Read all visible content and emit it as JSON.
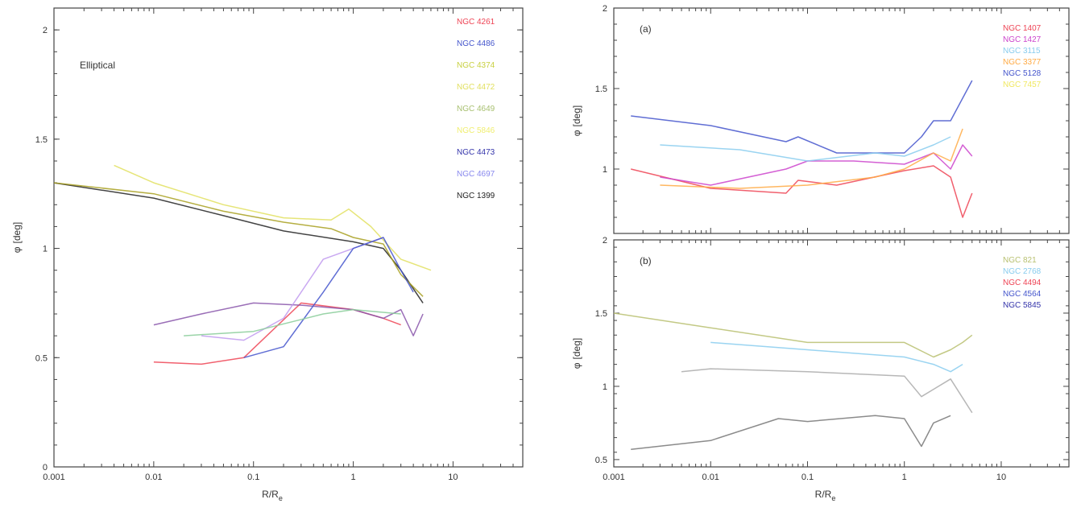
{
  "chart_data": [
    {
      "id": "left",
      "type": "line",
      "panel_label": "Elliptical",
      "xlabel": "R/R",
      "xlabel_sub": "e",
      "ylabel": "φ",
      "ylabel_unit": "[deg]",
      "xscale": "log",
      "xlim": [
        0.001,
        50
      ],
      "ylim": [
        0,
        2.1
      ],
      "xticks": [
        0.001,
        0.01,
        0.1,
        1,
        10
      ],
      "xtick_labels": [
        "0.001",
        "0.01",
        "0.1",
        "1",
        "10"
      ],
      "yticks": [
        0,
        0.5,
        1,
        1.5,
        2
      ],
      "ytick_labels": [
        "0",
        "0.5",
        "1",
        "1.5",
        "2"
      ],
      "grid": false,
      "legend_position": "top-right",
      "legend": [
        {
          "label": "NGC 4261",
          "color": "#ee4455"
        },
        {
          "label": "NGC 4486",
          "color": "#4455cc"
        },
        {
          "label": "NGC 4374",
          "color": "#c8d040"
        },
        {
          "label": "NGC 4472",
          "color": "#e2e060"
        },
        {
          "label": "NGC 4649",
          "color": "#a8c070"
        },
        {
          "label": "NGC 5846",
          "color": "#f0ee70"
        },
        {
          "label": "NGC 4473",
          "color": "#3333aa"
        },
        {
          "label": "NGC 4697",
          "color": "#8888ee"
        },
        {
          "label": "NGC 1399",
          "color": "#222222"
        }
      ],
      "series": [
        {
          "color": "#222222",
          "x": [
            0.001,
            0.01,
            0.05,
            0.2,
            1,
            2,
            3,
            5
          ],
          "y": [
            1.3,
            1.23,
            1.15,
            1.08,
            1.03,
            1.0,
            0.9,
            0.75
          ]
        },
        {
          "color": "#a8a020",
          "x": [
            0.001,
            0.01,
            0.05,
            0.2,
            0.6,
            1,
            2,
            3,
            5
          ],
          "y": [
            1.3,
            1.25,
            1.17,
            1.12,
            1.09,
            1.05,
            1.02,
            0.88,
            0.78
          ]
        },
        {
          "color": "#e2e060",
          "x": [
            0.004,
            0.01,
            0.05,
            0.2,
            0.6,
            0.9,
            1.5,
            3,
            6
          ],
          "y": [
            1.38,
            1.3,
            1.2,
            1.14,
            1.13,
            1.18,
            1.1,
            0.95,
            0.9
          ]
        },
        {
          "color": "#ee4455",
          "x": [
            0.01,
            0.03,
            0.08,
            0.3,
            1,
            2,
            3
          ],
          "y": [
            0.48,
            0.47,
            0.5,
            0.75,
            0.72,
            0.68,
            0.65
          ]
        },
        {
          "color": "#8855aa",
          "x": [
            0.01,
            0.03,
            0.1,
            0.3,
            1,
            2,
            3,
            4,
            5
          ],
          "y": [
            0.65,
            0.7,
            0.75,
            0.74,
            0.72,
            0.68,
            0.72,
            0.6,
            0.7
          ]
        },
        {
          "color": "#c099ee",
          "x": [
            0.03,
            0.08,
            0.2,
            0.5,
            1,
            2
          ],
          "y": [
            0.6,
            0.58,
            0.68,
            0.95,
            1.0,
            1.05
          ]
        },
        {
          "color": "#4455cc",
          "x": [
            0.08,
            0.2,
            0.5,
            1,
            2,
            3,
            4
          ],
          "y": [
            0.5,
            0.55,
            0.8,
            1.0,
            1.05,
            0.9,
            0.8
          ]
        },
        {
          "color": "#88cc99",
          "x": [
            0.02,
            0.1,
            0.5,
            1,
            3
          ],
          "y": [
            0.6,
            0.62,
            0.7,
            0.72,
            0.7
          ]
        }
      ]
    },
    {
      "id": "top-right",
      "type": "line",
      "panel_label": "(a)",
      "xlabel": "",
      "ylabel": "φ",
      "ylabel_unit": "[deg]",
      "xscale": "log",
      "xlim": [
        0.001,
        50
      ],
      "ylim": [
        0.6,
        2
      ],
      "xticks": [
        0.001,
        0.01,
        0.1,
        1,
        10
      ],
      "yticks": [
        1,
        1.5,
        2
      ],
      "ytick_labels": [
        "1",
        "1.5",
        "2"
      ],
      "grid": false,
      "legend_position": "top-right",
      "legend": [
        {
          "label": "NGC 1407",
          "color": "#ee4455"
        },
        {
          "label": "NGC 1427",
          "color": "#cc44cc"
        },
        {
          "label": "NGC 3115",
          "color": "#88ccee"
        },
        {
          "label": "NGC 3377",
          "color": "#ffaa44"
        },
        {
          "label": "NGC 5128",
          "color": "#4455cc"
        },
        {
          "label": "NGC 7457",
          "color": "#f0e860"
        }
      ],
      "series": [
        {
          "color": "#4455cc",
          "x": [
            0.0015,
            0.01,
            0.06,
            0.08,
            0.2,
            1,
            1.5,
            2,
            3,
            5
          ],
          "y": [
            1.33,
            1.27,
            1.17,
            1.2,
            1.1,
            1.1,
            1.2,
            1.3,
            1.3,
            1.55
          ]
        },
        {
          "color": "#ee4455",
          "x": [
            0.0015,
            0.01,
            0.06,
            0.08,
            0.2,
            1,
            2,
            3,
            4,
            5
          ],
          "y": [
            1.0,
            0.88,
            0.85,
            0.93,
            0.9,
            0.99,
            1.02,
            0.95,
            0.7,
            0.85
          ]
        },
        {
          "color": "#cc44cc",
          "x": [
            0.003,
            0.01,
            0.06,
            0.1,
            0.3,
            1,
            2,
            3,
            4,
            5
          ],
          "y": [
            0.95,
            0.9,
            1.0,
            1.05,
            1.05,
            1.03,
            1.1,
            1.0,
            1.15,
            1.08
          ]
        },
        {
          "color": "#88ccee",
          "x": [
            0.003,
            0.02,
            0.1,
            0.5,
            1,
            2,
            3
          ],
          "y": [
            1.15,
            1.12,
            1.05,
            1.1,
            1.08,
            1.15,
            1.2
          ]
        },
        {
          "color": "#ffaa44",
          "x": [
            0.003,
            0.02,
            0.1,
            0.5,
            1,
            2,
            3,
            4
          ],
          "y": [
            0.9,
            0.88,
            0.9,
            0.95,
            1.0,
            1.1,
            1.05,
            1.25
          ]
        }
      ]
    },
    {
      "id": "bottom-right",
      "type": "line",
      "panel_label": "(b)",
      "xlabel": "R/R",
      "xlabel_sub": "e",
      "ylabel": "φ",
      "ylabel_unit": "[deg]",
      "xscale": "log",
      "xlim": [
        0.001,
        50
      ],
      "ylim": [
        0.45,
        2
      ],
      "xticks": [
        0.001,
        0.01,
        0.1,
        1,
        10
      ],
      "xtick_labels": [
        "0.001",
        "0.01",
        "0.1",
        "1",
        "10"
      ],
      "yticks": [
        0.5,
        1,
        1.5,
        2
      ],
      "ytick_labels": [
        "0.5",
        "1",
        "1.5",
        "2"
      ],
      "grid": false,
      "legend_position": "top-right",
      "legend": [
        {
          "label": "NGC 821",
          "color": "#b8c070"
        },
        {
          "label": "NGC 2768",
          "color": "#88ccee"
        },
        {
          "label": "NGC 4494",
          "color": "#ee4455"
        },
        {
          "label": "NGC 4564",
          "color": "#4455cc"
        },
        {
          "label": "NGC 5845",
          "color": "#3333aa"
        }
      ],
      "series": [
        {
          "color": "#b8c070",
          "x": [
            0.001,
            0.01,
            0.1,
            1,
            2,
            3,
            4,
            5
          ],
          "y": [
            1.5,
            1.4,
            1.3,
            1.3,
            1.2,
            1.25,
            1.3,
            1.35
          ]
        },
        {
          "color": "#88ccee",
          "x": [
            0.01,
            0.1,
            1,
            2,
            3,
            4
          ],
          "y": [
            1.3,
            1.25,
            1.2,
            1.15,
            1.1,
            1.15
          ]
        },
        {
          "color": "#aaaaaa",
          "x": [
            0.005,
            0.01,
            0.1,
            1,
            1.5,
            2,
            3,
            5
          ],
          "y": [
            1.1,
            1.12,
            1.1,
            1.07,
            0.93,
            0.98,
            1.05,
            0.82
          ]
        },
        {
          "color": "#777777",
          "x": [
            0.0015,
            0.01,
            0.05,
            0.1,
            0.5,
            1,
            1.5,
            2,
            3
          ],
          "y": [
            0.57,
            0.63,
            0.78,
            0.76,
            0.8,
            0.78,
            0.59,
            0.75,
            0.8
          ]
        }
      ]
    }
  ]
}
